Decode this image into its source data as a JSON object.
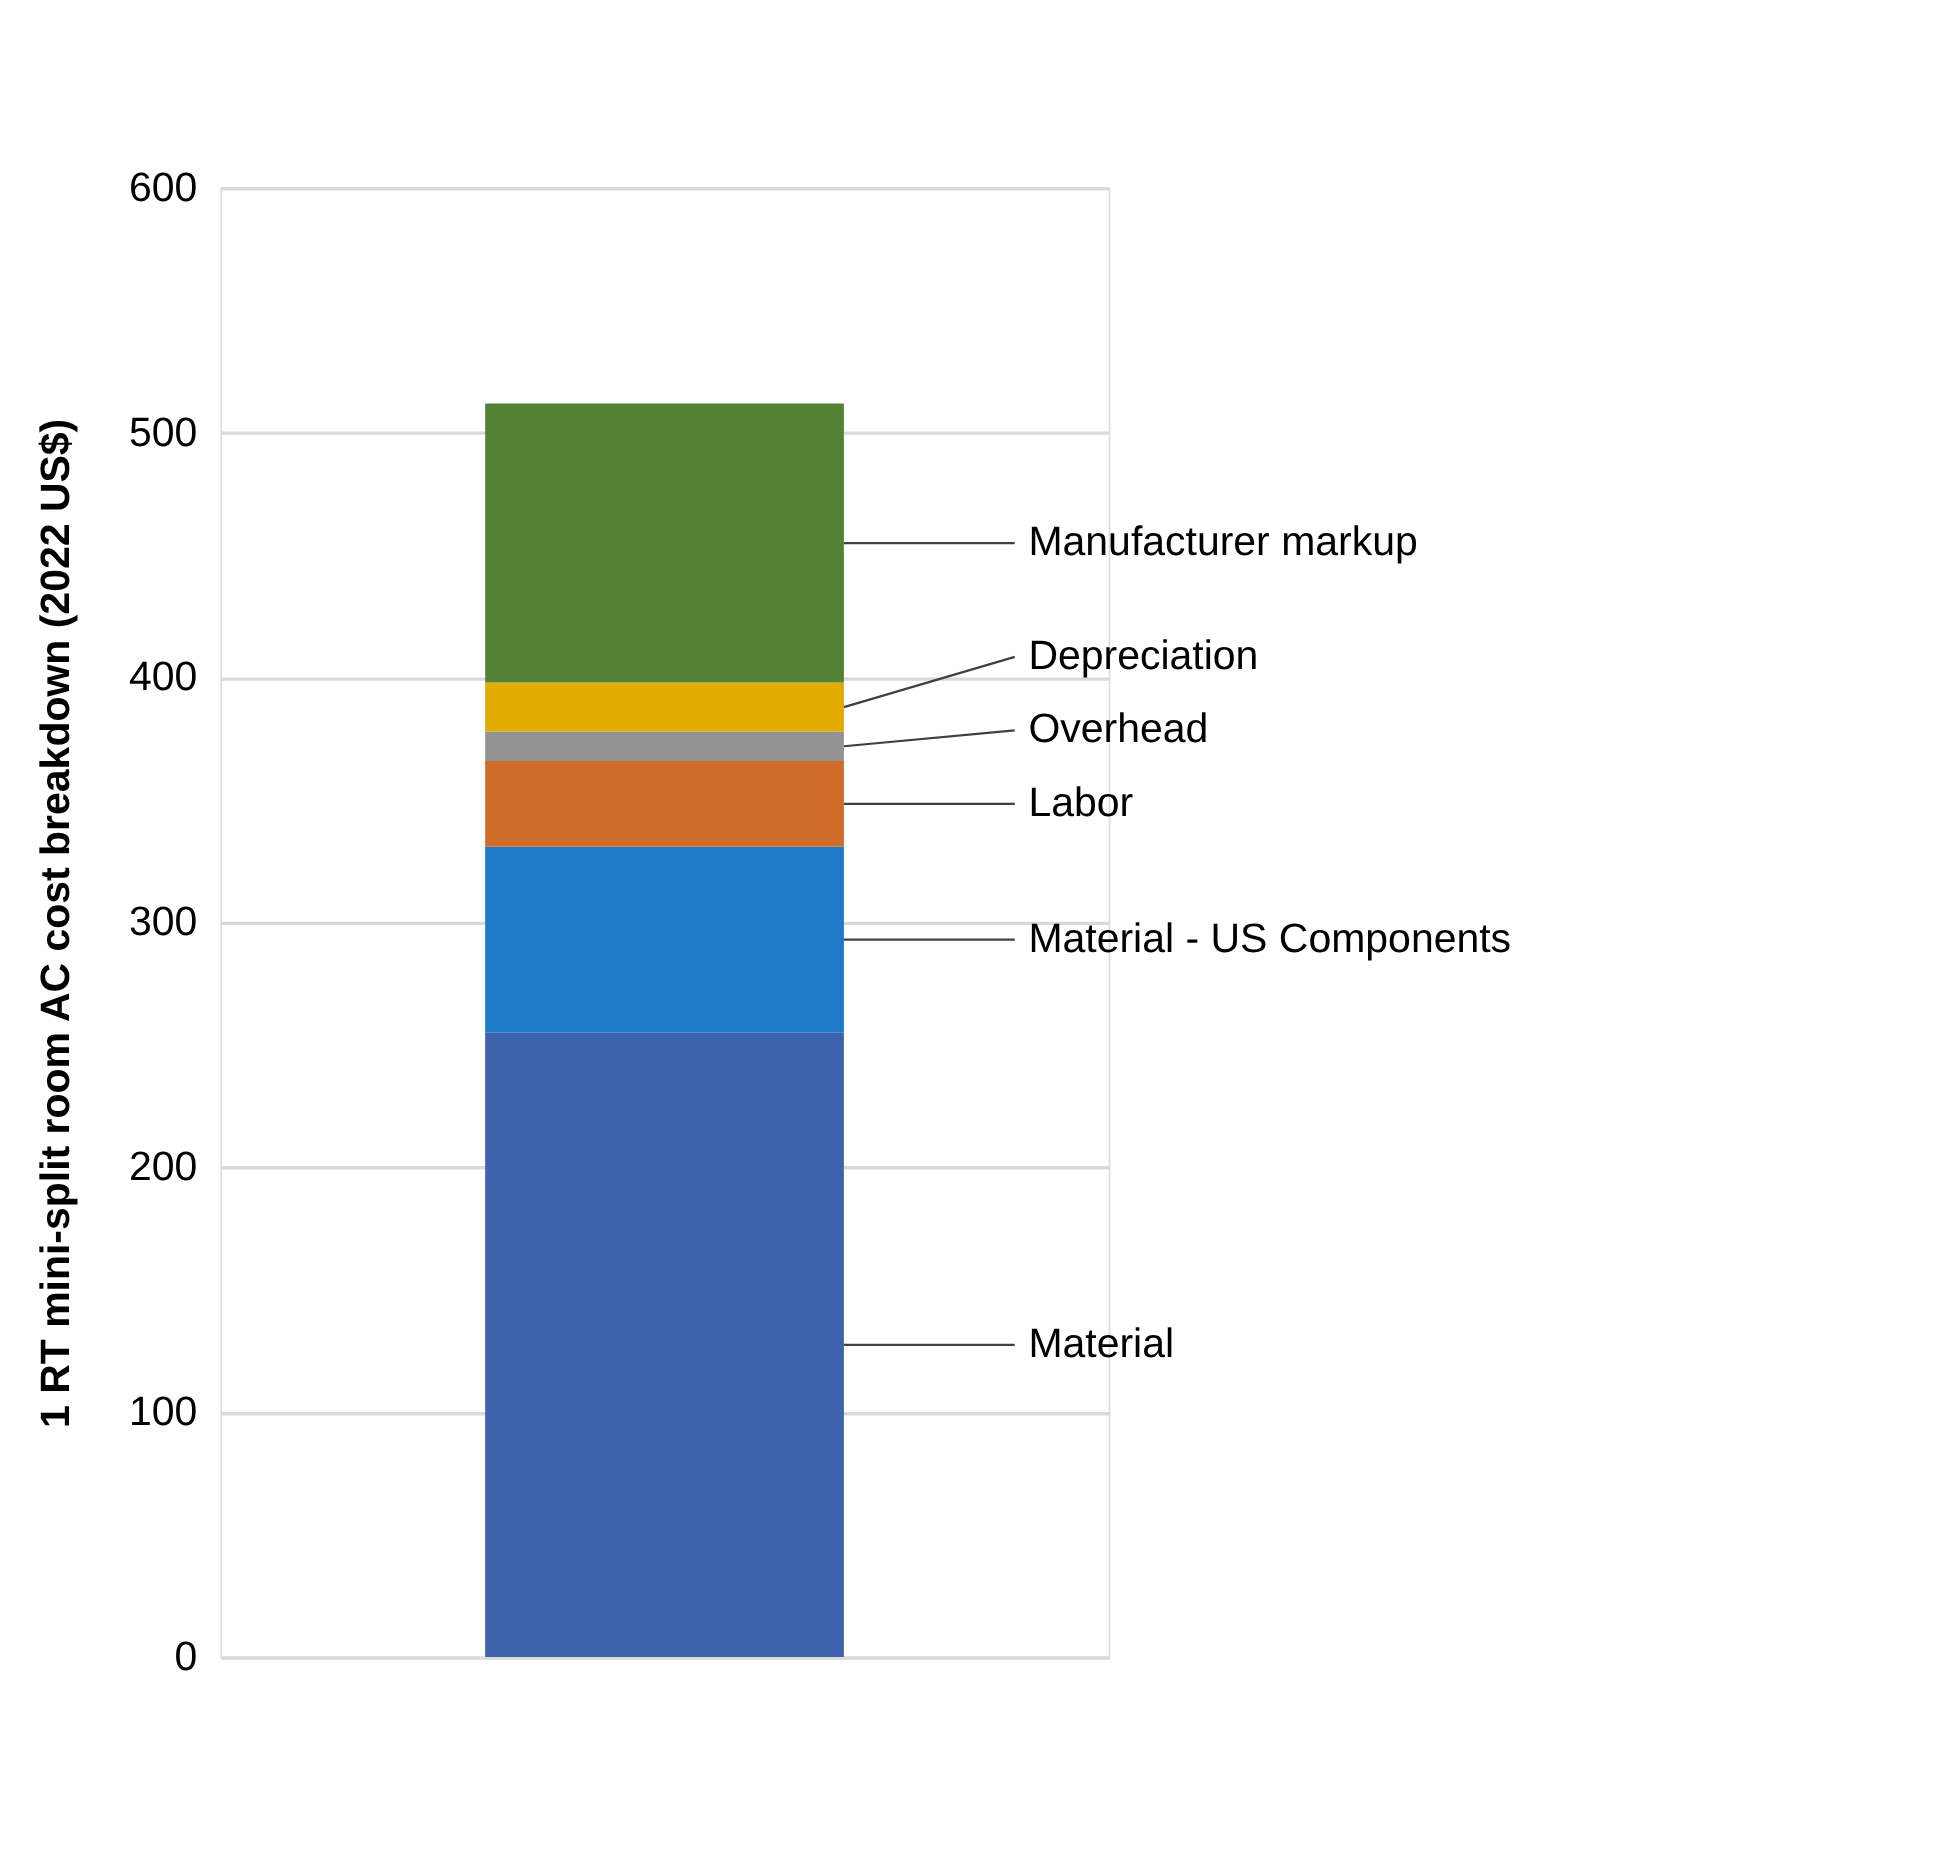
{
  "chart_data": {
    "type": "bar",
    "stacked": true,
    "ylabel": "1 RT mini-split room AC cost breakdown (2022 US$)",
    "categories": [
      null
    ],
    "series": [
      {
        "name": "Material",
        "color": "#3c63ac",
        "values": [
          255
        ]
      },
      {
        "name": "Material - US Components",
        "color": "#1f7ac8",
        "values": [
          76
        ]
      },
      {
        "name": "Labor",
        "color": "#d06b28",
        "values": [
          35
        ]
      },
      {
        "name": "Overhead",
        "color": "#939393",
        "values": [
          12
        ]
      },
      {
        "name": "Depreciation",
        "color": "#e2ab00",
        "values": [
          20
        ]
      },
      {
        "name": "Manufacturer markup",
        "color": "#548235",
        "values": [
          114
        ]
      }
    ],
    "ylim": [
      0,
      600
    ],
    "yticks": [
      0,
      100,
      200,
      300,
      400,
      500,
      600
    ],
    "grid": "y",
    "legend": false
  }
}
